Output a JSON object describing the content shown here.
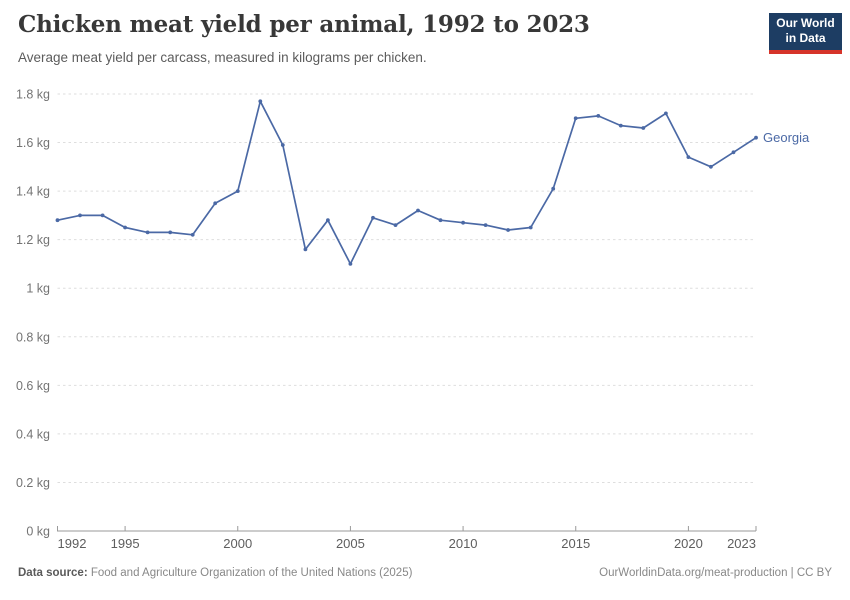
{
  "colors": {
    "series_line": "#4b69a5",
    "logo_bg": "#1d3d63",
    "logo_accent": "#d6342a",
    "gridline": "#dedede",
    "axis": "#9a9a9a"
  },
  "header": {
    "logo": {
      "line1": "Our World",
      "line2": "in Data"
    }
  },
  "chart_data": {
    "type": "line",
    "title": "Chicken meat yield per animal, 1992 to 2023",
    "subtitle": "Average meat yield per carcass, measured in kilograms per chicken.",
    "unit": "kg",
    "xlim": [
      1992,
      2023
    ],
    "ylim": [
      0,
      1.8
    ],
    "grid": "horizontal-dashed",
    "legend_position": "end-of-line-label",
    "x": [
      1992,
      1993,
      1994,
      1995,
      1996,
      1997,
      1998,
      1999,
      2000,
      2001,
      2002,
      2003,
      2004,
      2005,
      2006,
      2007,
      2008,
      2009,
      2010,
      2011,
      2012,
      2013,
      2014,
      2015,
      2016,
      2017,
      2018,
      2019,
      2020,
      2021,
      2022,
      2023
    ],
    "series": [
      {
        "name": "Georgia",
        "color": "#4b69a5",
        "values": [
          1.28,
          1.3,
          1.3,
          1.25,
          1.23,
          1.23,
          1.22,
          1.35,
          1.4,
          1.77,
          1.59,
          1.16,
          1.28,
          1.1,
          1.29,
          1.26,
          1.32,
          1.28,
          1.27,
          1.26,
          1.24,
          1.25,
          1.41,
          1.7,
          1.71,
          1.67,
          1.66,
          1.72,
          1.54,
          1.5,
          1.56,
          1.62
        ]
      }
    ],
    "x_ticks": [
      "1992",
      "1995",
      "2000",
      "2005",
      "2010",
      "2015",
      "2020",
      "2023"
    ],
    "y_ticks": [
      {
        "value": 0,
        "label": "0 kg"
      },
      {
        "value": 0.2,
        "label": "0.2 kg"
      },
      {
        "value": 0.4,
        "label": "0.4 kg"
      },
      {
        "value": 0.6,
        "label": "0.6 kg"
      },
      {
        "value": 0.8,
        "label": "0.8 kg"
      },
      {
        "value": 1,
        "label": "1 kg"
      },
      {
        "value": 1.2,
        "label": "1.2 kg"
      },
      {
        "value": 1.4,
        "label": "1.4 kg"
      },
      {
        "value": 1.6,
        "label": "1.6 kg"
      },
      {
        "value": 1.8,
        "label": "1.8 kg"
      }
    ]
  },
  "footer": {
    "source_label": "Data source:",
    "source_text": " Food and Agriculture Organization of the United Nations (2025)",
    "attribution": "OurWorldinData.org/meat-production | CC BY"
  }
}
